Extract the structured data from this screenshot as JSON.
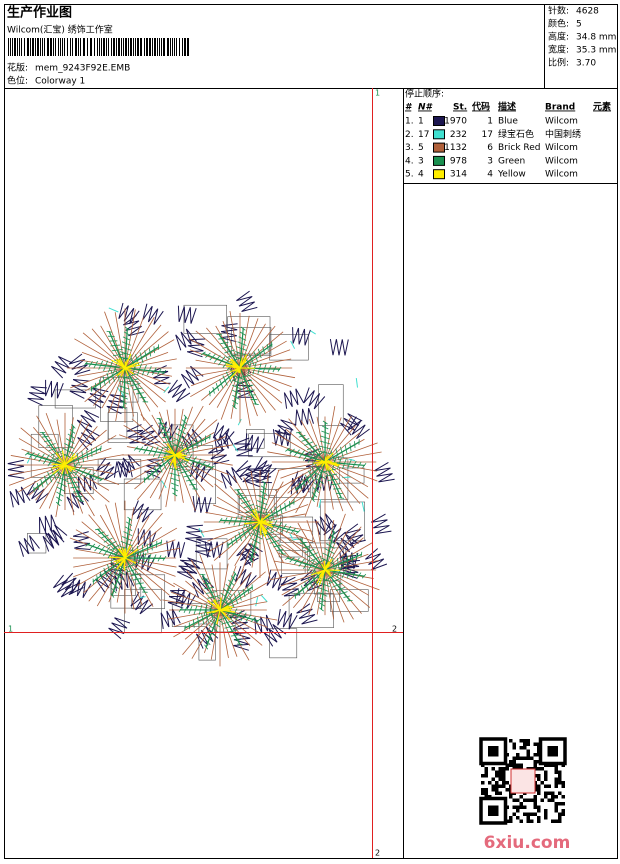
{
  "header": {
    "title": "生产作业图",
    "studio": "Wilcom(汇宝) 绣饰工作室",
    "design_label": "花版:",
    "design": "mem_9243F92E.EMB",
    "colorway_label": "色位:",
    "colorway": "Colorway 1"
  },
  "info": [
    {
      "label": "针数:",
      "value": "4628"
    },
    {
      "label": "颜色:",
      "value": "5"
    },
    {
      "label": "高度:",
      "value": "34.8 mm"
    },
    {
      "label": "宽度:",
      "value": "35.3 mm"
    },
    {
      "label": "比例:",
      "value": "3.70"
    }
  ],
  "stop_sequence": {
    "title": "停止顺序:",
    "columns": [
      "#",
      "N#",
      "St.",
      "代码",
      "描述",
      "Brand",
      "元素"
    ],
    "rows": [
      {
        "index": "1.",
        "n": "1",
        "color": "#1c1650",
        "stitches": "1970",
        "code": "1",
        "description": "Blue",
        "brand": "Wilcom"
      },
      {
        "index": "2.",
        "n": "17",
        "color": "#40e0d0",
        "stitches": "232",
        "code": "17",
        "description": "绿宝石色",
        "brand": "中国刺绣"
      },
      {
        "index": "3.",
        "n": "5",
        "color": "#b0603a",
        "stitches": "1132",
        "code": "6",
        "description": "Brick Red",
        "brand": "Wilcom"
      },
      {
        "index": "4.",
        "n": "3",
        "color": "#1a9050",
        "stitches": "978",
        "code": "3",
        "description": "Green",
        "brand": "Wilcom"
      },
      {
        "index": "5.",
        "n": "4",
        "color": "#ffee00",
        "stitches": "314",
        "code": "4",
        "description": "Yellow",
        "brand": "Wilcom"
      }
    ]
  },
  "markers": {
    "top": "1",
    "left": "1",
    "right": "2",
    "bottom": "2"
  },
  "watermark": "6xiu.com"
}
